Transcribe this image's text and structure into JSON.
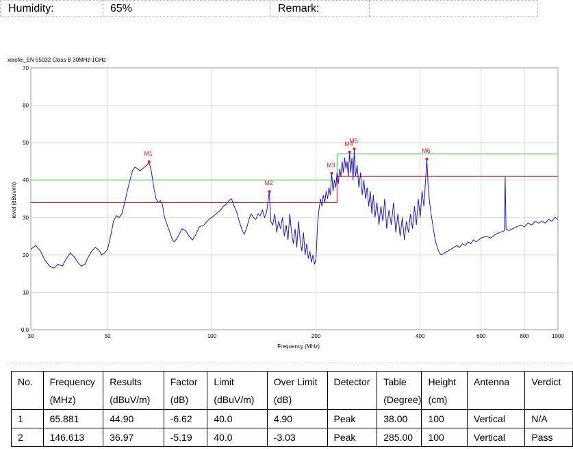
{
  "header": {
    "humidity_label": "Humidity:",
    "humidity_value": "65%",
    "remark_label": "Remark:",
    "remark_value": ""
  },
  "chart_data": {
    "type": "line",
    "title": "xiaofei_EN 55032 Class B 30MHz-1GHz",
    "xlabel": "Frequency (MHz)",
    "ylabel": "level (dBuV/m)",
    "xscale": "log",
    "xlim": [
      30,
      1000
    ],
    "ylim": [
      0,
      70
    ],
    "x_ticks": [
      30,
      50,
      100,
      200,
      400,
      600,
      800,
      1000
    ],
    "y_ticks": [
      0,
      10,
      20,
      30,
      40,
      50,
      60,
      70
    ],
    "y_tick_labels": [
      "0.0",
      "10",
      "20",
      "30",
      "40",
      "50",
      "60",
      "70"
    ],
    "grid": true,
    "colors": {
      "trace": "#1a14e6",
      "limit_qp": "#3cc83c",
      "limit_av": "#e01e2c",
      "marker": "#e01e2c",
      "grid": "#d9d9d9"
    },
    "limit_lines": [
      {
        "color": "green",
        "points": [
          [
            30,
            40
          ],
          [
            230,
            40
          ],
          [
            230,
            47
          ],
          [
            1000,
            47
          ]
        ]
      },
      {
        "color": "red",
        "points": [
          [
            30,
            34
          ],
          [
            230,
            34
          ],
          [
            230,
            41
          ],
          [
            1000,
            41
          ]
        ]
      }
    ],
    "markers": [
      {
        "label": "M1",
        "x": 65.881,
        "y": 44.9
      },
      {
        "label": "M2",
        "x": 146.613,
        "y": 36.97
      },
      {
        "label": "M3",
        "x": 222,
        "y": 41.8
      },
      {
        "label": "M4",
        "x": 250,
        "y": 47.5
      },
      {
        "label": "M5",
        "x": 258,
        "y": 48.3
      },
      {
        "label": "M6",
        "x": 418,
        "y": 45.6
      }
    ],
    "trace": [
      [
        30,
        21.5
      ],
      [
        31,
        22.5
      ],
      [
        32,
        21
      ],
      [
        33,
        18.5
      ],
      [
        34,
        17
      ],
      [
        35,
        16.5
      ],
      [
        36,
        17.5
      ],
      [
        37,
        17
      ],
      [
        38,
        19
      ],
      [
        39,
        20.5
      ],
      [
        40,
        19.5
      ],
      [
        41,
        18
      ],
      [
        42,
        17
      ],
      [
        43,
        17.5
      ],
      [
        44,
        19.5
      ],
      [
        45,
        21
      ],
      [
        46,
        22
      ],
      [
        47,
        21.5
      ],
      [
        48,
        20
      ],
      [
        49,
        20.5
      ],
      [
        50,
        21.5
      ],
      [
        51,
        25
      ],
      [
        52,
        29
      ],
      [
        53,
        30.5
      ],
      [
        54,
        30
      ],
      [
        55,
        31
      ],
      [
        56,
        34
      ],
      [
        57,
        37
      ],
      [
        58,
        40
      ],
      [
        59,
        42.5
      ],
      [
        60,
        43.5
      ],
      [
        61,
        43
      ],
      [
        62,
        42.5
      ],
      [
        63,
        43
      ],
      [
        64,
        43.5
      ],
      [
        65,
        44
      ],
      [
        65.9,
        44.9
      ],
      [
        67,
        42
      ],
      [
        68,
        38
      ],
      [
        69,
        35
      ],
      [
        70,
        34
      ],
      [
        71,
        34.5
      ],
      [
        72,
        33.5
      ],
      [
        73,
        30
      ],
      [
        74,
        28.5
      ],
      [
        75,
        27
      ],
      [
        76,
        25.5
      ],
      [
        77,
        24
      ],
      [
        78,
        23.5
      ],
      [
        80,
        25
      ],
      [
        82,
        27
      ],
      [
        84,
        26.5
      ],
      [
        86,
        25
      ],
      [
        88,
        24
      ],
      [
        90,
        25.5
      ],
      [
        92,
        27.5
      ],
      [
        95,
        28
      ],
      [
        98,
        29.5
      ],
      [
        100,
        30
      ],
      [
        103,
        31
      ],
      [
        106,
        32
      ],
      [
        108,
        33
      ],
      [
        110,
        33.5
      ],
      [
        112,
        34.5
      ],
      [
        114,
        35
      ],
      [
        116,
        33
      ],
      [
        118,
        31.5
      ],
      [
        120,
        29
      ],
      [
        122,
        27
      ],
      [
        124,
        25.5
      ],
      [
        126,
        27
      ],
      [
        128,
        29.5
      ],
      [
        130,
        31
      ],
      [
        132,
        30
      ],
      [
        134,
        29.5
      ],
      [
        136,
        31
      ],
      [
        138,
        30.5
      ],
      [
        140,
        32
      ],
      [
        142,
        30
      ],
      [
        144,
        31.5
      ],
      [
        146.6,
        36.97
      ],
      [
        148,
        29
      ],
      [
        150,
        28
      ],
      [
        152,
        31
      ],
      [
        154,
        26
      ],
      [
        156,
        29
      ],
      [
        158,
        27
      ],
      [
        160,
        30
      ],
      [
        162,
        25
      ],
      [
        164,
        28
      ],
      [
        166,
        24
      ],
      [
        168,
        31
      ],
      [
        170,
        26
      ],
      [
        172,
        23
      ],
      [
        174,
        27
      ],
      [
        176,
        22
      ],
      [
        178,
        29
      ],
      [
        180,
        24
      ],
      [
        182,
        21
      ],
      [
        184,
        26
      ],
      [
        186,
        20
      ],
      [
        188,
        23
      ],
      [
        190,
        19
      ],
      [
        192,
        21
      ],
      [
        194,
        18
      ],
      [
        196,
        20
      ],
      [
        198,
        17.5
      ],
      [
        200,
        19
      ],
      [
        202,
        28
      ],
      [
        204,
        32
      ],
      [
        206,
        35
      ],
      [
        208,
        33
      ],
      [
        210,
        36
      ],
      [
        212,
        34
      ],
      [
        214,
        37
      ],
      [
        216,
        35
      ],
      [
        218,
        38
      ],
      [
        220,
        36
      ],
      [
        222,
        41.8
      ],
      [
        224,
        37
      ],
      [
        226,
        40
      ],
      [
        228,
        38
      ],
      [
        230,
        42
      ],
      [
        232,
        39
      ],
      [
        234,
        43
      ],
      [
        236,
        41
      ],
      [
        238,
        45
      ],
      [
        240,
        42
      ],
      [
        242,
        46
      ],
      [
        244,
        43
      ],
      [
        246,
        45
      ],
      [
        248,
        41
      ],
      [
        250,
        47.5
      ],
      [
        252,
        42
      ],
      [
        254,
        46
      ],
      [
        256,
        40
      ],
      [
        258,
        48.3
      ],
      [
        260,
        41
      ],
      [
        263,
        44
      ],
      [
        266,
        38
      ],
      [
        269,
        42
      ],
      [
        272,
        36
      ],
      [
        275,
        40
      ],
      [
        278,
        35
      ],
      [
        281,
        38
      ],
      [
        284,
        33
      ],
      [
        287,
        37
      ],
      [
        290,
        31
      ],
      [
        293,
        36
      ],
      [
        296,
        30
      ],
      [
        300,
        34
      ],
      [
        304,
        28
      ],
      [
        308,
        33
      ],
      [
        312,
        29
      ],
      [
        316,
        35
      ],
      [
        320,
        27
      ],
      [
        325,
        32
      ],
      [
        330,
        28
      ],
      [
        335,
        34
      ],
      [
        340,
        26
      ],
      [
        345,
        31
      ],
      [
        350,
        25
      ],
      [
        355,
        30
      ],
      [
        360,
        24
      ],
      [
        365,
        29
      ],
      [
        370,
        26
      ],
      [
        375,
        31
      ],
      [
        380,
        27
      ],
      [
        385,
        33
      ],
      [
        390,
        28
      ],
      [
        395,
        35
      ],
      [
        400,
        30
      ],
      [
        405,
        37
      ],
      [
        410,
        33
      ],
      [
        414,
        39
      ],
      [
        418,
        45.6
      ],
      [
        422,
        38
      ],
      [
        426,
        34
      ],
      [
        430,
        31
      ],
      [
        435,
        28
      ],
      [
        440,
        25
      ],
      [
        445,
        23
      ],
      [
        450,
        21.5
      ],
      [
        455,
        20.5
      ],
      [
        460,
        20
      ],
      [
        470,
        20.5
      ],
      [
        480,
        21
      ],
      [
        490,
        21.5
      ],
      [
        500,
        22
      ],
      [
        510,
        22.5
      ],
      [
        520,
        22
      ],
      [
        530,
        23
      ],
      [
        540,
        22.5
      ],
      [
        550,
        23.5
      ],
      [
        560,
        23
      ],
      [
        570,
        24
      ],
      [
        580,
        23.5
      ],
      [
        590,
        24
      ],
      [
        600,
        24.5
      ],
      [
        620,
        25
      ],
      [
        640,
        24.5
      ],
      [
        660,
        25.5
      ],
      [
        680,
        26
      ],
      [
        700,
        26.5
      ],
      [
        704,
        41
      ],
      [
        708,
        27
      ],
      [
        720,
        26.5
      ],
      [
        740,
        27
      ],
      [
        760,
        27.5
      ],
      [
        780,
        28
      ],
      [
        800,
        27.5
      ],
      [
        820,
        28.5
      ],
      [
        840,
        28
      ],
      [
        860,
        29
      ],
      [
        880,
        28.5
      ],
      [
        900,
        29
      ],
      [
        920,
        28.5
      ],
      [
        940,
        29.5
      ],
      [
        960,
        29
      ],
      [
        980,
        30
      ],
      [
        1000,
        29.5
      ]
    ]
  },
  "results": {
    "headers": [
      [
        "No.",
        ""
      ],
      [
        "Frequency",
        "(MHz)"
      ],
      [
        "Results",
        "(dBuV/m)"
      ],
      [
        "Factor",
        "(dB)"
      ],
      [
        "Limit",
        "(dBuV/m)"
      ],
      [
        "Over Limit",
        "(dB)"
      ],
      [
        "Detector",
        ""
      ],
      [
        "Table",
        "(Degree)"
      ],
      [
        "Height",
        "(cm)"
      ],
      [
        "Antenna",
        ""
      ],
      [
        "Verdict",
        ""
      ]
    ],
    "rows": [
      [
        "1",
        "65.881",
        "44.90",
        "-6.62",
        "40.0",
        "4.90",
        "Peak",
        "38.00",
        "100",
        "Vertical",
        "N/A"
      ],
      [
        "2",
        "146.613",
        "36.97",
        "-5.19",
        "40.0",
        "-3.03",
        "Peak",
        "285.00",
        "100",
        "Vertical",
        "Pass"
      ]
    ]
  }
}
